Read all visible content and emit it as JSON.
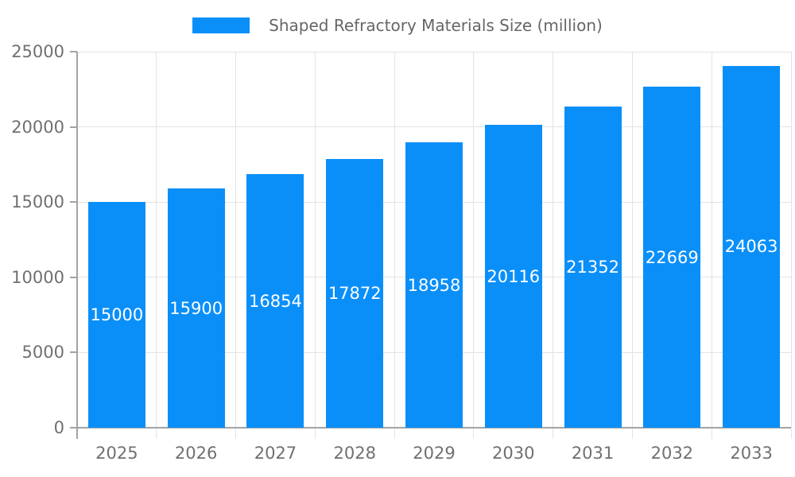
{
  "chart_data": {
    "type": "bar",
    "title": "Shaped Refractory Materials Size (million)",
    "legend": {
      "label": "Shaped Refractory Materials Size (million)",
      "position": "top-center"
    },
    "categories": [
      "2025",
      "2026",
      "2027",
      "2028",
      "2029",
      "2030",
      "2031",
      "2032",
      "2033"
    ],
    "values": [
      15000,
      15900,
      16854,
      17872,
      18958,
      20116,
      21352,
      22669,
      24063
    ],
    "value_labels": [
      "15000",
      "15900",
      "16854",
      "17872",
      "18958",
      "20116",
      "21352",
      "22669",
      "24063"
    ],
    "value_labels_position": "inside-center",
    "xlabel": "",
    "ylabel": "",
    "ylim": [
      0,
      25000
    ],
    "ytick_step": 5000,
    "yticks": [
      "0",
      "5000",
      "10000",
      "15000",
      "20000",
      "25000"
    ],
    "grid": true,
    "colors": {
      "bar": "#0a8ff9",
      "grid_line": "#e3e3e3",
      "axis_line": "#a3a3a3",
      "tick_text": "#707070",
      "value_label_text": "#ffffff",
      "legend_text": "#666666"
    }
  }
}
